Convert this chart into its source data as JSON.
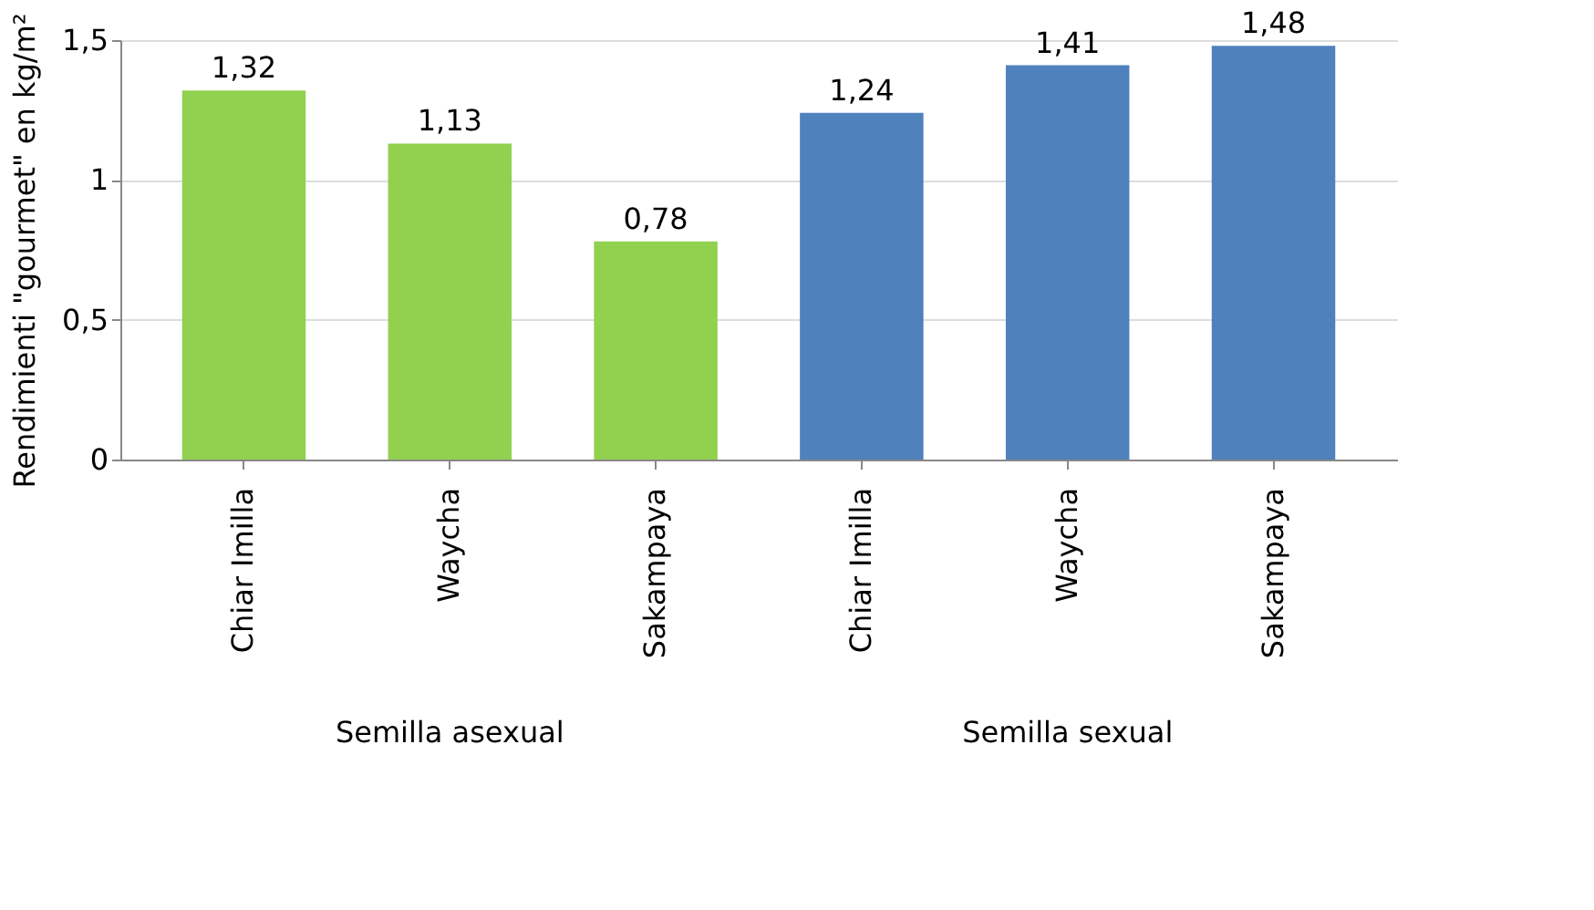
{
  "chart_data": {
    "type": "bar",
    "ylabel": "Rendimienti \"gourmet\" en kg/m²",
    "categories": [
      "Chiar Imilla",
      "Waycha",
      "Sakampaya",
      "Chiar Imilla",
      "Waycha",
      "Sakampaya"
    ],
    "values": [
      1.32,
      1.13,
      0.78,
      1.24,
      1.41,
      1.48
    ],
    "colors": [
      "#92d050",
      "#92d050",
      "#92d050",
      "#4f81bd",
      "#4f81bd",
      "#4f81bd"
    ],
    "value_labels": [
      "1,32",
      "1,13",
      "0,78",
      "1,24",
      "1,41",
      "1,48"
    ],
    "ylim": [
      0,
      1.5
    ],
    "yticks": [
      {
        "value": 0,
        "label": "0"
      },
      {
        "value": 0.5,
        "label": "0,5"
      },
      {
        "value": 1,
        "label": "1"
      },
      {
        "value": 1.5,
        "label": "1,5"
      }
    ],
    "grid": "y",
    "annotations": [
      "Semilla asexual",
      "Semilla sexual"
    ]
  }
}
